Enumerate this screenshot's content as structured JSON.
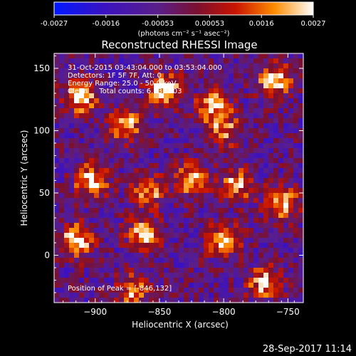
{
  "chart_data": {
    "type": "heatmap",
    "title": "Reconstructed RHESSI Image",
    "xlabel": "Heliocentric X (arcsec)",
    "ylabel": "Heliocentric Y (arcsec)",
    "xlim": [
      -932,
      -738
    ],
    "ylim": [
      -38,
      162
    ],
    "xticks": [
      -900,
      -850,
      -800,
      -750
    ],
    "yticks": [
      0,
      50,
      100,
      150
    ],
    "colorbar": {
      "range": [
        -0.0027,
        0.0027
      ],
      "tick_labels": [
        "-0.0027",
        "-0.0016",
        "-0.00053",
        "0.00053",
        "0.0016",
        "0.0027"
      ],
      "units_text": "(photons cm⁻² s⁻¹ asec⁻²)"
    },
    "annotations": [
      "31-Oct-2015 03:43:04.000 to 03:53:04.000",
      "Detectors: 1F 5F 7F, Att: 0",
      "Energy Range: 25.0 - 50.0 keV",
      "Clean     Total counts: 6.73E+03"
    ],
    "peak_text": "Position of Peak = [-846,132]",
    "sources": [
      {
        "x": -912,
        "y": 127,
        "intensity": 0.0027
      },
      {
        "x": -903,
        "y": 60,
        "intensity": 0.0025
      },
      {
        "x": -915,
        "y": 12,
        "intensity": 0.0027
      },
      {
        "x": -876,
        "y": 104,
        "intensity": 0.0022
      },
      {
        "x": -862,
        "y": 18,
        "intensity": 0.0024
      },
      {
        "x": -858,
        "y": 52,
        "intensity": 0.0021
      },
      {
        "x": -846,
        "y": 132,
        "intensity": 0.0027
      },
      {
        "x": -825,
        "y": 60,
        "intensity": 0.0024
      },
      {
        "x": -800,
        "y": 12,
        "intensity": 0.0026
      },
      {
        "x": -808,
        "y": 120,
        "intensity": 0.0022
      },
      {
        "x": -790,
        "y": 57,
        "intensity": 0.0021
      },
      {
        "x": -760,
        "y": 140,
        "intensity": 0.0026
      },
      {
        "x": -755,
        "y": 42,
        "intensity": 0.0023
      },
      {
        "x": -870,
        "y": -28,
        "intensity": 0.0019
      },
      {
        "x": -768,
        "y": -22,
        "intensity": 0.0022
      },
      {
        "x": -800,
        "y": 100,
        "intensity": 0.0018
      }
    ]
  },
  "footer": {
    "timestamp": "28-Sep-2017 11:14"
  }
}
